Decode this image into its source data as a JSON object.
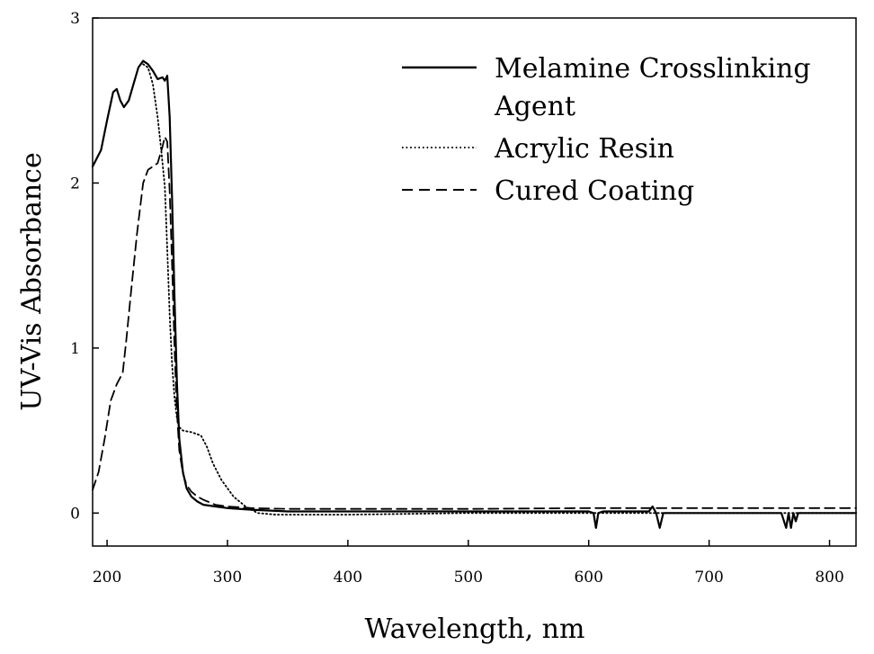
{
  "chart_data": {
    "type": "line",
    "title": "",
    "xlabel": "Wavelength, nm",
    "ylabel": "UV-Vis Absorbance",
    "xlim": [
      188,
      822
    ],
    "ylim": [
      -0.2,
      3.0
    ],
    "xticks": [
      200,
      300,
      400,
      500,
      600,
      700,
      800
    ],
    "yticks": [
      0,
      1,
      2,
      3
    ],
    "grid": false,
    "legend_position": "top-right",
    "series": [
      {
        "name": "Melamine Crosslinking Agent",
        "style": "solid",
        "x": [
          188,
          195,
          200,
          205,
          208,
          211,
          214,
          218,
          222,
          226,
          230,
          234,
          238,
          242,
          246,
          248,
          250,
          252,
          254,
          256,
          258,
          260,
          263,
          266,
          270,
          275,
          280,
          290,
          300,
          320,
          350,
          400,
          500,
          600,
          604,
          606,
          608,
          612,
          650,
          653,
          656,
          659,
          662,
          700,
          760,
          764,
          766,
          768,
          770,
          772,
          774,
          780,
          822
        ],
        "y": [
          2.1,
          2.2,
          2.38,
          2.55,
          2.57,
          2.5,
          2.46,
          2.5,
          2.6,
          2.7,
          2.74,
          2.72,
          2.68,
          2.63,
          2.64,
          2.62,
          2.65,
          2.4,
          1.9,
          1.3,
          0.8,
          0.45,
          0.25,
          0.15,
          0.1,
          0.07,
          0.05,
          0.04,
          0.03,
          0.02,
          0.01,
          0.01,
          0.01,
          0.01,
          0.0,
          -0.09,
          0.0,
          0.01,
          0.01,
          0.04,
          0.0,
          -0.09,
          0.0,
          0.0,
          0.0,
          -0.09,
          0.0,
          -0.09,
          0.0,
          -0.05,
          0.0,
          0.0,
          0.0
        ]
      },
      {
        "name": "Acrylic Resin",
        "style": "dotted",
        "x": [
          230,
          234,
          238,
          242,
          245,
          248,
          250,
          252,
          254,
          256,
          258,
          260,
          263,
          270,
          278,
          283,
          288,
          295,
          305,
          315,
          325,
          340,
          400,
          500,
          600,
          700,
          822
        ],
        "y": [
          2.72,
          2.7,
          2.6,
          2.4,
          2.2,
          1.98,
          1.6,
          1.2,
          0.9,
          0.7,
          0.58,
          0.52,
          0.5,
          0.49,
          0.47,
          0.4,
          0.3,
          0.2,
          0.1,
          0.04,
          0.0,
          -0.01,
          -0.01,
          0.0,
          0.0,
          0.0,
          0.0
        ]
      },
      {
        "name": "Cured Coating",
        "style": "dashed",
        "x": [
          188,
          193,
          198,
          203,
          208,
          213,
          216,
          220,
          225,
          230,
          234,
          238,
          242,
          246,
          248,
          250,
          252,
          254,
          256,
          258,
          260,
          263,
          266,
          270,
          275,
          280,
          290,
          300,
          320,
          350,
          400,
          500,
          600,
          700,
          822
        ],
        "y": [
          0.14,
          0.25,
          0.45,
          0.68,
          0.78,
          0.85,
          1.05,
          1.35,
          1.7,
          2.0,
          2.08,
          2.1,
          2.12,
          2.22,
          2.28,
          2.25,
          1.95,
          1.5,
          1.0,
          0.62,
          0.38,
          0.24,
          0.17,
          0.13,
          0.1,
          0.08,
          0.05,
          0.04,
          0.03,
          0.025,
          0.025,
          0.025,
          0.03,
          0.03,
          0.03
        ]
      }
    ],
    "legend": [
      {
        "lines": [
          "Melamine Crosslinking",
          "Agent"
        ],
        "style": "solid"
      },
      {
        "lines": [
          "Acrylic Resin"
        ],
        "style": "dotted"
      },
      {
        "lines": [
          "Cured Coating"
        ],
        "style": "dashed"
      }
    ]
  }
}
